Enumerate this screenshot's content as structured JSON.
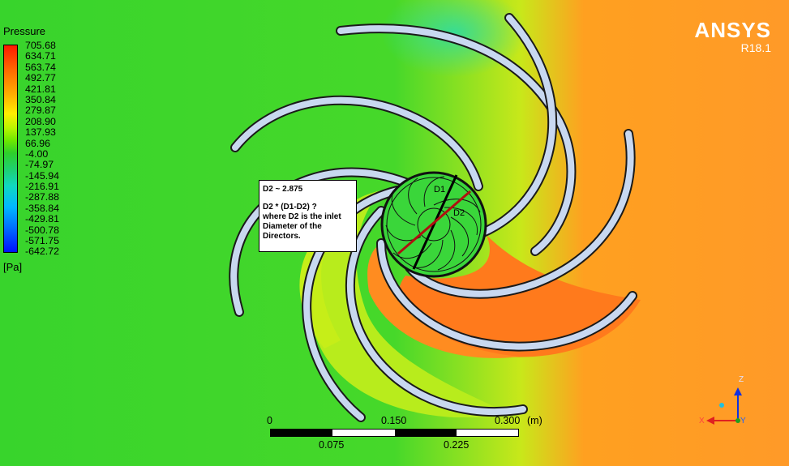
{
  "legend": {
    "title": "Pressure",
    "unit": "[Pa]",
    "values": [
      "705.68",
      "634.71",
      "563.74",
      "492.77",
      "421.81",
      "350.84",
      "279.87",
      "208.90",
      "137.93",
      "66.96",
      "-4.00",
      "-74.97",
      "-145.94",
      "-216.91",
      "-287.88",
      "-358.84",
      "-429.81",
      "-500.78",
      "-571.75",
      "-642.72"
    ],
    "colors": [
      "#ff1a00",
      "#ff6a00",
      "#ffb000",
      "#ffee00",
      "#6ee800",
      "#2ed02a",
      "#10d8c0",
      "#00b8ff",
      "#0010ff"
    ]
  },
  "brand": {
    "name": "ANSYS",
    "version": "R18.1"
  },
  "note": {
    "line1": "D2 ~ 2.875",
    "line2": "D2 * (D1-D2) ?",
    "line3": "where D2 is the inlet",
    "line4": "Diameter of the",
    "line5": "Directors."
  },
  "diameters": {
    "d1": "D1",
    "d2": "D2"
  },
  "scale": {
    "top_labels": [
      "0",
      "0.150",
      "0.300"
    ],
    "bottom_labels": [
      "0.075",
      "0.225"
    ],
    "unit": "(m)"
  },
  "axes": {
    "z": "Z",
    "x": "X",
    "y": "Y"
  }
}
